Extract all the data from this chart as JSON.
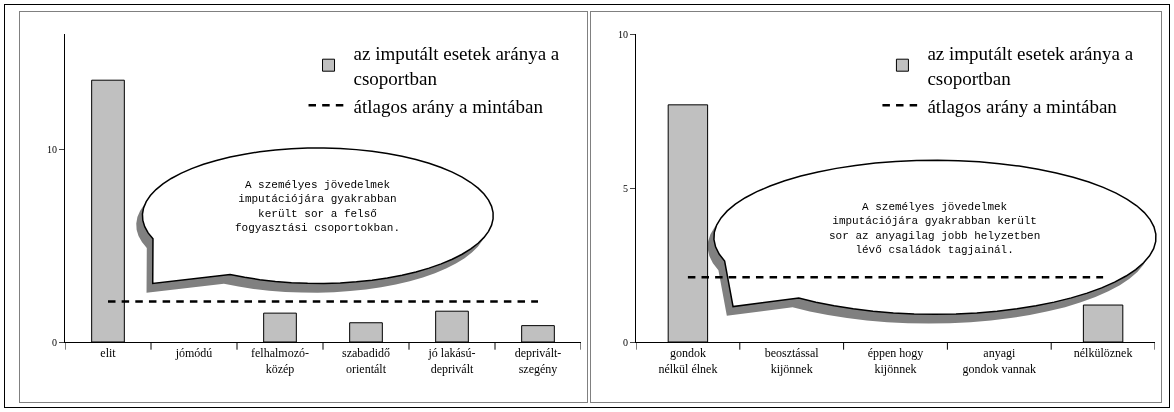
{
  "chart_data": [
    {
      "type": "bar",
      "categories": [
        "elit",
        "jómódú",
        "felhalmozó-közép",
        "szabadidő orientált",
        "jó lakású-deprivált",
        "deprivált-szegény"
      ],
      "ylim": [
        0,
        16
      ],
      "yticks": [
        0,
        10
      ],
      "grid": false,
      "legend": "top right",
      "annotations": [
        "A személyes jövedelmek imputációjára gyakrabban került sor a felső fogyasztási csoportokban."
      ],
      "series": [
        {
          "name": "az imputált esetek aránya a csoportban",
          "color": "#c0c0c0",
          "values": [
            13.6,
            null,
            1.5,
            1.0,
            1.6,
            0.85
          ]
        },
        {
          "name": "átlagos arány a mintában",
          "type": "line",
          "color": "#000000",
          "line_style": "dashed",
          "values": [
            2.1,
            2.1,
            2.1,
            2.1,
            2.1,
            2.1
          ]
        }
      ]
    },
    {
      "type": "bar",
      "categories": [
        "gondok nélkül élnek",
        "beosztással kijönnek",
        "éppen hogy kijönnek",
        "anyagi gondok vannak",
        "nélkülöznek"
      ],
      "ylim": [
        0,
        10
      ],
      "yticks": [
        0,
        5,
        10
      ],
      "grid": false,
      "legend": "top right",
      "annotations": [
        "A személyes jövedelmek imputációjára gyakrabban került sor az anyagilag jobb helyzetben lévő családok tagjainál."
      ],
      "series": [
        {
          "name": "az imputált esetek aránya a csoportban",
          "color": "#c0c0c0",
          "values": [
            7.7,
            null,
            null,
            null,
            1.2
          ]
        },
        {
          "name": "átlagos arány a mintában",
          "type": "line",
          "color": "#000000",
          "line_style": "dashed",
          "values": [
            2.1,
            2.1,
            2.1,
            2.1,
            2.1
          ]
        }
      ]
    }
  ]
}
